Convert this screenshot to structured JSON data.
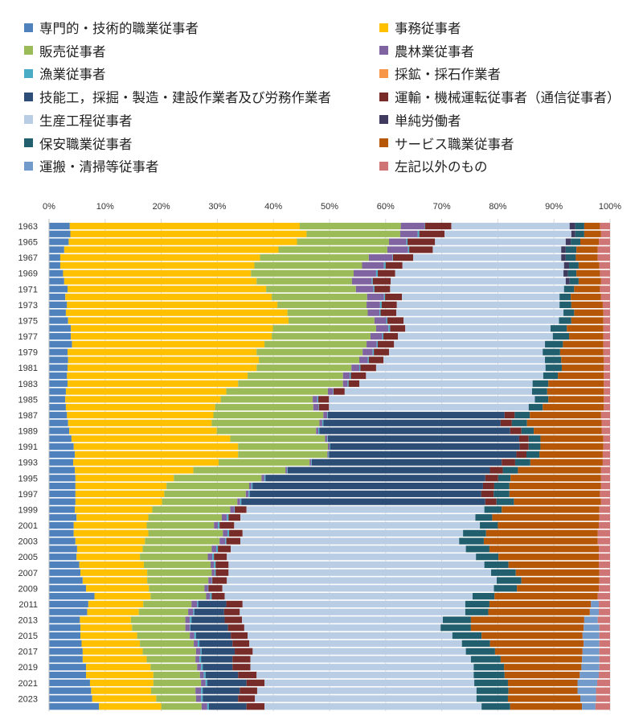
{
  "chart_data": {
    "type": "bar",
    "orientation": "horizontal",
    "stacked": "percent",
    "xlim": [
      0,
      100
    ],
    "x_ticks": [
      "0%",
      "10%",
      "20%",
      "30%",
      "40%",
      "50%",
      "60%",
      "70%",
      "80%",
      "90%",
      "100%"
    ],
    "y_tick_labels": [
      "1963",
      "1965",
      "1967",
      "1969",
      "1971",
      "1973",
      "1975",
      "1977",
      "1979",
      "1981",
      "1983",
      "1985",
      "1987",
      "1989",
      "1991",
      "1993",
      "1995",
      "1997",
      "1999",
      "2001",
      "2003",
      "2005",
      "2007",
      "2009",
      "2011",
      "2013",
      "2015",
      "2017",
      "2019",
      "2021",
      "2023"
    ],
    "grid": "vertical",
    "legend_placement": "top",
    "series": [
      {
        "name": "専門的・技術的職業従事者",
        "color": "#4f81bd"
      },
      {
        "name": "事務従事者",
        "color": "#ffc000"
      },
      {
        "name": "販売従事者",
        "color": "#9bbb59"
      },
      {
        "name": "農林業従事者",
        "color": "#8064a2"
      },
      {
        "name": "漁業従事者",
        "color": "#4bacc6"
      },
      {
        "name": "採鉱・採石作業者",
        "color": "#f79646"
      },
      {
        "name": "技能工，採掘・製造・建設作業者及び労務作業者",
        "color": "#2c4d75"
      },
      {
        "name": "運輸・機械運転従事者（通信従事者）",
        "color": "#772c2a"
      },
      {
        "name": "生産工程従事者",
        "color": "#b9cde5"
      },
      {
        "name": "単純労働者",
        "color": "#3f3a5e"
      },
      {
        "name": "保安職業従事者",
        "color": "#215f6e"
      },
      {
        "name": "サービス職業従事者",
        "color": "#b65708"
      },
      {
        "name": "運搬・清掃等従事者",
        "color": "#729aca"
      },
      {
        "name": "左記以外のもの",
        "color": "#d07575"
      }
    ],
    "rows": [
      {
        "year": 1963,
        "values": [
          3.7,
          41.0,
          18.0,
          4.2,
          0.1,
          0,
          0,
          4.7,
          21.1,
          1.0,
          1.6,
          2.8,
          0,
          1.8
        ]
      },
      {
        "year": 1964,
        "values": [
          3.8,
          42.1,
          16.7,
          3.1,
          0.3,
          0,
          0,
          4.5,
          22.6,
          0.7,
          1.6,
          3.0,
          0,
          1.6
        ]
      },
      {
        "year": 1965,
        "values": [
          3.5,
          40.7,
          16.4,
          3.1,
          0.2,
          0,
          0,
          4.9,
          23.3,
          0.9,
          1.7,
          3.3,
          0,
          2.0
        ]
      },
      {
        "year": 1966,
        "values": [
          2.7,
          38.2,
          19.4,
          3.7,
          0.2,
          0,
          0,
          4.2,
          22.9,
          0.8,
          1.9,
          3.8,
          0,
          2.2
        ]
      },
      {
        "year": 1967,
        "values": [
          2.0,
          35.6,
          19.4,
          4.2,
          0.1,
          0,
          0,
          3.6,
          26.4,
          0.8,
          1.8,
          3.9,
          0,
          2.2
        ]
      },
      {
        "year": 1968,
        "values": [
          2.0,
          34.6,
          19.2,
          3.9,
          0.3,
          0,
          0,
          3.0,
          28.8,
          0.9,
          1.7,
          3.7,
          0,
          1.9
        ]
      },
      {
        "year": 1969,
        "values": [
          2.5,
          33.5,
          18.3,
          4.0,
          0.3,
          0,
          0,
          3.1,
          30.0,
          0.8,
          1.5,
          4.2,
          0,
          1.8
        ]
      },
      {
        "year": 1970,
        "values": [
          2.7,
          34.3,
          17.0,
          3.5,
          0.2,
          0,
          0,
          3.2,
          31.2,
          0.7,
          1.6,
          4.0,
          0,
          1.6
        ]
      },
      {
        "year": 1971,
        "values": [
          3.3,
          35.4,
          16.0,
          3.1,
          0.2,
          0,
          0,
          2.8,
          31.0,
          0,
          1.8,
          4.6,
          0,
          1.8
        ]
      },
      {
        "year": 1972,
        "values": [
          2.9,
          36.8,
          17.0,
          3.0,
          0.2,
          0,
          0,
          3.0,
          28.1,
          0,
          2.0,
          5.4,
          0,
          1.6
        ]
      },
      {
        "year": 1973,
        "values": [
          3.2,
          37.5,
          15.9,
          2.4,
          0.3,
          0,
          0,
          2.7,
          29.0,
          0,
          2.1,
          5.6,
          0,
          1.3
        ]
      },
      {
        "year": 1974,
        "values": [
          3.0,
          39.5,
          14.3,
          2.1,
          0.2,
          0,
          0,
          2.8,
          29.8,
          0,
          1.9,
          5.2,
          0,
          1.2
        ]
      },
      {
        "year": 1975,
        "values": [
          3.4,
          39.3,
          15.3,
          2.1,
          0.2,
          0,
          0,
          2.9,
          27.7,
          0,
          2.2,
          5.7,
          0,
          1.2
        ]
      },
      {
        "year": 1976,
        "values": [
          3.9,
          36.0,
          18.4,
          2.2,
          0.3,
          0,
          0,
          2.7,
          25.9,
          0,
          2.9,
          6.5,
          0,
          1.2
        ]
      },
      {
        "year": 1977,
        "values": [
          3.9,
          35.8,
          17.6,
          2.1,
          0.2,
          0,
          0,
          2.6,
          27.6,
          0,
          2.9,
          6.1,
          0,
          1.2
        ]
      },
      {
        "year": 1978,
        "values": [
          4.1,
          34.3,
          18.2,
          1.8,
          0.2,
          0,
          0,
          2.9,
          26.9,
          0,
          3.2,
          7.2,
          0,
          1.2
        ]
      },
      {
        "year": 1979,
        "values": [
          3.3,
          33.7,
          18.9,
          1.8,
          0.2,
          0,
          0,
          2.7,
          27.4,
          0,
          3.1,
          7.7,
          0,
          1.2
        ]
      },
      {
        "year": 1980,
        "values": [
          3.4,
          34.0,
          17.9,
          1.5,
          0.2,
          0,
          0,
          2.6,
          28.8,
          0,
          2.9,
          7.6,
          0,
          1.1
        ]
      },
      {
        "year": 1981,
        "values": [
          3.3,
          33.7,
          16.9,
          1.4,
          0.2,
          0,
          0,
          2.8,
          30.2,
          0,
          2.9,
          7.5,
          0,
          1.1
        ]
      },
      {
        "year": 1982,
        "values": [
          3.2,
          32.2,
          17.0,
          1.2,
          0.2,
          0,
          0,
          2.7,
          31.6,
          0,
          2.6,
          8.2,
          0,
          1.1
        ]
      },
      {
        "year": 1983,
        "values": [
          3.3,
          30.4,
          18.7,
          0.8,
          0.2,
          0,
          0,
          1.9,
          30.9,
          0,
          2.8,
          9.9,
          0,
          1.1
        ]
      },
      {
        "year": 1984,
        "values": [
          3.0,
          28.6,
          18.1,
          0.9,
          0.1,
          0,
          0,
          2.0,
          33.4,
          0,
          2.7,
          10.1,
          0,
          1.1
        ]
      },
      {
        "year": 1985,
        "values": [
          2.9,
          27.7,
          16.4,
          0.8,
          0.2,
          0,
          0,
          1.9,
          36.7,
          0,
          2.4,
          9.9,
          0,
          1.1
        ]
      },
      {
        "year": 1986,
        "values": [
          3.0,
          26.6,
          17.5,
          0.9,
          0.1,
          0,
          0,
          1.8,
          35.6,
          0,
          2.5,
          10.9,
          0,
          1.1
        ]
      },
      {
        "year": 1987,
        "values": [
          3.2,
          26.1,
          19.6,
          0.7,
          0.1,
          0,
          31.5,
          1.8,
          0,
          0,
          2.7,
          12.7,
          0,
          1.6
        ]
      },
      {
        "year": 1988,
        "values": [
          3.4,
          25.6,
          19.2,
          0.5,
          0.2,
          0,
          31.6,
          2.0,
          0,
          0,
          2.7,
          13.3,
          0,
          1.5
        ]
      },
      {
        "year": 1989,
        "values": [
          3.6,
          26.3,
          17.7,
          0.4,
          0.2,
          0,
          34.0,
          2.0,
          0,
          0,
          2.2,
          12.1,
          0,
          1.5
        ]
      },
      {
        "year": 1990,
        "values": [
          4.0,
          28.3,
          16.9,
          0.4,
          0.1,
          0,
          34.1,
          1.7,
          0,
          0,
          2.1,
          11.2,
          0,
          1.2
        ]
      },
      {
        "year": 1991,
        "values": [
          4.4,
          29.3,
          16.0,
          0.3,
          0.1,
          0,
          33.8,
          1.6,
          0,
          0,
          2.1,
          11.2,
          0,
          1.2
        ]
      },
      {
        "year": 1992,
        "values": [
          4.6,
          29.1,
          15.9,
          0.2,
          0.1,
          0,
          33.4,
          1.8,
          0,
          0,
          2.3,
          11.3,
          0,
          1.3
        ]
      },
      {
        "year": 1993,
        "values": [
          4.3,
          25.9,
          16.2,
          0.3,
          0.1,
          0,
          33.8,
          2.4,
          0,
          0,
          2.7,
          12.9,
          0,
          1.3
        ]
      },
      {
        "year": 1994,
        "values": [
          4.6,
          21.1,
          16.4,
          0.3,
          0.1,
          0,
          36.0,
          2.3,
          0,
          0,
          2.7,
          14.8,
          0,
          1.6
        ]
      },
      {
        "year": 1995,
        "values": [
          4.7,
          17.5,
          15.6,
          0.5,
          0.2,
          0,
          39.1,
          2.3,
          0,
          0,
          2.2,
          16.1,
          0,
          1.6
        ]
      },
      {
        "year": 1996,
        "values": [
          4.7,
          16.2,
          14.7,
          0.4,
          0.2,
          0,
          41.0,
          2.0,
          0,
          0,
          2.7,
          16.3,
          0,
          1.6
        ]
      },
      {
        "year": 1997,
        "values": [
          4.7,
          15.8,
          14.5,
          0.5,
          0.2,
          0,
          41.2,
          2.2,
          0,
          0,
          2.8,
          16.1,
          0,
          1.8
        ]
      },
      {
        "year": 1998,
        "values": [
          4.7,
          15.4,
          13.4,
          0.5,
          0.2,
          0,
          43.4,
          2.0,
          0,
          0,
          3.1,
          15.5,
          0,
          1.6
        ]
      },
      {
        "year": 1999,
        "values": [
          4.6,
          13.8,
          13.9,
          0.7,
          0.1,
          0,
          0,
          2.1,
          42.4,
          0,
          3.1,
          17.4,
          0,
          1.9
        ]
      },
      {
        "year": 2000,
        "values": [
          4.9,
          12.8,
          13.1,
          0.9,
          0.3,
          0,
          0,
          2.1,
          41.9,
          0,
          3.0,
          19.1,
          0,
          1.9
        ]
      },
      {
        "year": 2001,
        "values": [
          4.4,
          13.0,
          12.0,
          0.7,
          0.3,
          0,
          0,
          2.6,
          43.8,
          0,
          3.2,
          18.0,
          0,
          2.0
        ]
      },
      {
        "year": 2002,
        "values": [
          4.4,
          13.3,
          13.3,
          0.8,
          0.3,
          0,
          0,
          2.4,
          39.3,
          0,
          4.1,
          19.9,
          0,
          2.2
        ]
      },
      {
        "year": 2003,
        "values": [
          4.7,
          12.4,
          13.3,
          1.0,
          0.2,
          0,
          0,
          2.5,
          39.0,
          0,
          4.4,
          20.3,
          0,
          2.2
        ]
      },
      {
        "year": 2004,
        "values": [
          5.0,
          11.7,
          12.3,
          0.8,
          0.3,
          0,
          0,
          2.3,
          41.9,
          0,
          4.2,
          19.5,
          0,
          2.0
        ]
      },
      {
        "year": 2005,
        "values": [
          4.9,
          11.3,
          12.1,
          0.8,
          0.3,
          0,
          0,
          2.3,
          44.4,
          0,
          4.0,
          17.9,
          0,
          2.0
        ]
      },
      {
        "year": 2006,
        "values": [
          5.4,
          11.5,
          11.9,
          0.6,
          0.3,
          0,
          0,
          2.3,
          45.6,
          0,
          4.3,
          16.1,
          0,
          2.0
        ]
      },
      {
        "year": 2007,
        "values": [
          5.6,
          11.9,
          11.5,
          0.5,
          0.2,
          0,
          0,
          2.3,
          46.8,
          0,
          4.4,
          14.9,
          0,
          1.9
        ]
      },
      {
        "year": 2008,
        "values": [
          6.0,
          11.5,
          10.9,
          0.6,
          0.1,
          0,
          0,
          2.6,
          48.1,
          0,
          4.4,
          13.9,
          0,
          1.9
        ]
      },
      {
        "year": 2009,
        "values": [
          6.6,
          11.2,
          9.9,
          0.6,
          0.1,
          0,
          0,
          2.5,
          48.4,
          0,
          4.1,
          14.6,
          0,
          2.0
        ]
      },
      {
        "year": 2010,
        "values": [
          8.1,
          10.0,
          9.9,
          0.7,
          0.3,
          0,
          0,
          2.3,
          44.2,
          0,
          3.9,
          18.4,
          0,
          2.2
        ]
      },
      {
        "year": 2011,
        "values": [
          7.0,
          9.8,
          8.6,
          1.0,
          0.2,
          0,
          5.0,
          2.9,
          39.7,
          0,
          4.3,
          18.1,
          1.4,
          2.0
        ]
      },
      {
        "year": 2012,
        "values": [
          6.8,
          9.2,
          8.8,
          0.9,
          0.2,
          0,
          5.3,
          2.8,
          40.2,
          0,
          4.1,
          18.1,
          1.6,
          2.0
        ]
      },
      {
        "year": 2013,
        "values": [
          5.5,
          9.1,
          9.7,
          0.8,
          0.3,
          0,
          5.9,
          3.1,
          35.8,
          0,
          5.0,
          20.2,
          2.4,
          2.2
        ]
      },
      {
        "year": 2014,
        "values": [
          5.6,
          9.2,
          9.5,
          0.8,
          0.1,
          0,
          6.7,
          2.9,
          35.0,
          0,
          5.4,
          20.1,
          2.8,
          1.9
        ]
      },
      {
        "year": 2015,
        "values": [
          5.6,
          10.1,
          9.4,
          0.8,
          0.3,
          0,
          6.2,
          3.0,
          36.5,
          0,
          5.2,
          18.0,
          3.0,
          1.9
        ]
      },
      {
        "year": 2016,
        "values": [
          5.8,
          10.4,
          9.6,
          0.7,
          0.3,
          0,
          5.9,
          3.0,
          37.9,
          0,
          5.0,
          16.7,
          2.8,
          1.9
        ]
      },
      {
        "year": 2017,
        "values": [
          6.0,
          10.7,
          9.5,
          0.8,
          0.2,
          0,
          5.9,
          3.2,
          38.0,
          0,
          5.2,
          15.6,
          3.0,
          1.9
        ]
      },
      {
        "year": 2018,
        "values": [
          6.0,
          11.4,
          8.7,
          0.7,
          0.3,
          0,
          5.6,
          3.2,
          39.3,
          0,
          5.3,
          14.5,
          3.1,
          1.9
        ]
      },
      {
        "year": 2019,
        "values": [
          6.6,
          11.5,
          8.3,
          0.7,
          0.3,
          0,
          5.3,
          3.2,
          39.8,
          0,
          5.4,
          13.8,
          3.2,
          1.9
        ]
      },
      {
        "year": 2020,
        "values": [
          6.6,
          12.0,
          8.3,
          0.7,
          0.3,
          0,
          5.8,
          3.3,
          38.7,
          0,
          5.5,
          13.4,
          3.4,
          2.0
        ]
      },
      {
        "year": 2021,
        "values": [
          7.3,
          11.3,
          8.5,
          0.8,
          0.3,
          0,
          7.0,
          3.2,
          37.4,
          0,
          6.0,
          12.4,
          3.5,
          2.3
        ]
      },
      {
        "year": 2022,
        "values": [
          7.5,
          10.7,
          7.9,
          1.0,
          0.3,
          0,
          6.6,
          3.1,
          39.1,
          0,
          5.7,
          12.3,
          3.3,
          2.5
        ]
      },
      {
        "year": 2023,
        "values": [
          7.7,
          11.4,
          7.1,
          0.9,
          0.3,
          0,
          6.3,
          3.0,
          39.5,
          0,
          5.6,
          12.9,
          2.8,
          2.5
        ]
      },
      {
        "year": 2024,
        "values": [
          8.9,
          11.1,
          7.2,
          1.0,
          0.3,
          0,
          6.7,
          3.2,
          38.7,
          0,
          5.1,
          12.8,
          2.4,
          2.6
        ]
      }
    ]
  }
}
